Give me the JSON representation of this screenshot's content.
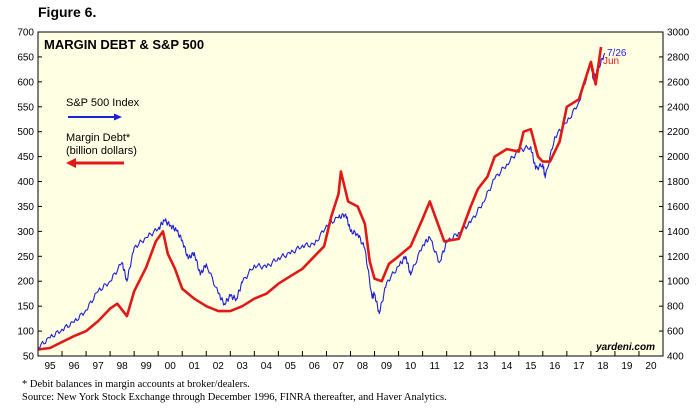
{
  "figure_label": "Figure 6.",
  "footnotes": [
    "*  Debit balances in margin accounts at broker/dealers.",
    "Source: New York Stock Exchange through December 1996, FINRA thereafter, and Haver Analytics."
  ],
  "chart_data": {
    "type": "line",
    "title": "MARGIN DEBT & S&P 500",
    "watermark": "yardeni.com",
    "x_tick_labels": [
      "95",
      "96",
      "97",
      "98",
      "99",
      "00",
      "01",
      "02",
      "03",
      "04",
      "05",
      "06",
      "07",
      "08",
      "09",
      "10",
      "11",
      "12",
      "13",
      "14",
      "15",
      "16",
      "17",
      "18",
      "19",
      "20"
    ],
    "xlim": [
      1995.0,
      2021.0
    ],
    "left_axis": {
      "ylim": [
        50,
        700
      ],
      "ticks": [
        50,
        100,
        150,
        200,
        250,
        300,
        350,
        400,
        450,
        500,
        550,
        600,
        650,
        700
      ]
    },
    "right_axis": {
      "ylim": [
        400,
        3000
      ],
      "ticks": [
        400,
        600,
        800,
        1000,
        1200,
        1400,
        1600,
        1800,
        2000,
        2200,
        2400,
        2600,
        2800,
        3000
      ]
    },
    "legend": [
      {
        "label_lines": [
          "S&P 500 Index"
        ],
        "direction": "right",
        "color": "#1f1fd6"
      },
      {
        "label_lines": [
          "Margin Debt*",
          "(billion dollars)"
        ],
        "direction": "left",
        "color": "#e01818"
      }
    ],
    "annotations": [
      {
        "text": "7/26",
        "color": "#1f1fd6",
        "series": "S&P 500 Index"
      },
      {
        "text": "Jun",
        "color": "#e01818",
        "series": "Margin Debt*"
      }
    ],
    "series": [
      {
        "name": "S&P 500 Index",
        "axis": "right",
        "color": "#1f1fd6",
        "x": [
          1995.0,
          1995.5,
          1996.0,
          1996.5,
          1997.0,
          1997.5,
          1998.0,
          1998.5,
          1998.7,
          1999.0,
          1999.5,
          2000.0,
          2000.25,
          2000.5,
          2000.75,
          2001.0,
          2001.25,
          2001.5,
          2001.75,
          2002.0,
          2002.5,
          2002.75,
          2003.0,
          2003.25,
          2003.5,
          2004.0,
          2004.5,
          2005.0,
          2005.5,
          2006.0,
          2006.5,
          2007.0,
          2007.5,
          2007.8,
          2008.0,
          2008.3,
          2008.6,
          2008.9,
          2009.0,
          2009.2,
          2009.5,
          2010.0,
          2010.3,
          2010.5,
          2011.0,
          2011.3,
          2011.7,
          2012.0,
          2012.5,
          2013.0,
          2013.5,
          2014.0,
          2014.5,
          2015.0,
          2015.5,
          2015.7,
          2016.0,
          2016.1,
          2016.5,
          2017.0,
          2017.5,
          2018.0,
          2018.1,
          2018.3,
          2018.57
        ],
        "values": [
          470,
          545,
          615,
          670,
          770,
          920,
          1000,
          1150,
          1000,
          1270,
          1350,
          1420,
          1490,
          1450,
          1410,
          1330,
          1180,
          1230,
          1050,
          1140,
          900,
          820,
          880,
          860,
          990,
          1130,
          1110,
          1190,
          1220,
          1290,
          1290,
          1450,
          1510,
          1540,
          1400,
          1380,
          1260,
          870,
          900,
          740,
          990,
          1120,
          1200,
          1050,
          1290,
          1350,
          1150,
          1310,
          1390,
          1470,
          1630,
          1820,
          1940,
          2050,
          2080,
          1900,
          1940,
          1830,
          2160,
          2270,
          2440,
          2750,
          2620,
          2700,
          2830
        ]
      },
      {
        "name": "Margin Debt*",
        "axis": "left",
        "color": "#e01818",
        "x": [
          1995.0,
          1995.5,
          1996.0,
          1996.5,
          1997.0,
          1997.5,
          1998.0,
          1998.3,
          1998.7,
          1999.0,
          1999.5,
          1999.9,
          2000.2,
          2000.4,
          2000.7,
          2001.0,
          2001.5,
          2002.0,
          2002.5,
          2003.0,
          2003.5,
          2004.0,
          2004.5,
          2005.0,
          2005.5,
          2006.0,
          2006.5,
          2006.9,
          2007.2,
          2007.5,
          2007.6,
          2007.9,
          2008.3,
          2008.6,
          2008.8,
          2009.0,
          2009.3,
          2009.6,
          2010.0,
          2010.5,
          2011.0,
          2011.3,
          2011.6,
          2011.9,
          2012.5,
          2013.0,
          2013.3,
          2013.7,
          2014.0,
          2014.5,
          2015.0,
          2015.2,
          2015.5,
          2015.8,
          2016.0,
          2016.3,
          2016.7,
          2017.0,
          2017.5,
          2018.0,
          2018.2,
          2018.42
        ],
        "values": [
          63,
          66,
          78,
          90,
          100,
          120,
          145,
          155,
          130,
          180,
          228,
          280,
          300,
          255,
          225,
          185,
          165,
          150,
          140,
          140,
          150,
          165,
          175,
          195,
          210,
          225,
          250,
          270,
          330,
          375,
          420,
          360,
          350,
          315,
          240,
          205,
          200,
          235,
          250,
          270,
          325,
          360,
          320,
          280,
          285,
          350,
          385,
          410,
          450,
          465,
          460,
          500,
          505,
          450,
          440,
          440,
          480,
          550,
          565,
          640,
          595,
          670
        ]
      }
    ]
  }
}
